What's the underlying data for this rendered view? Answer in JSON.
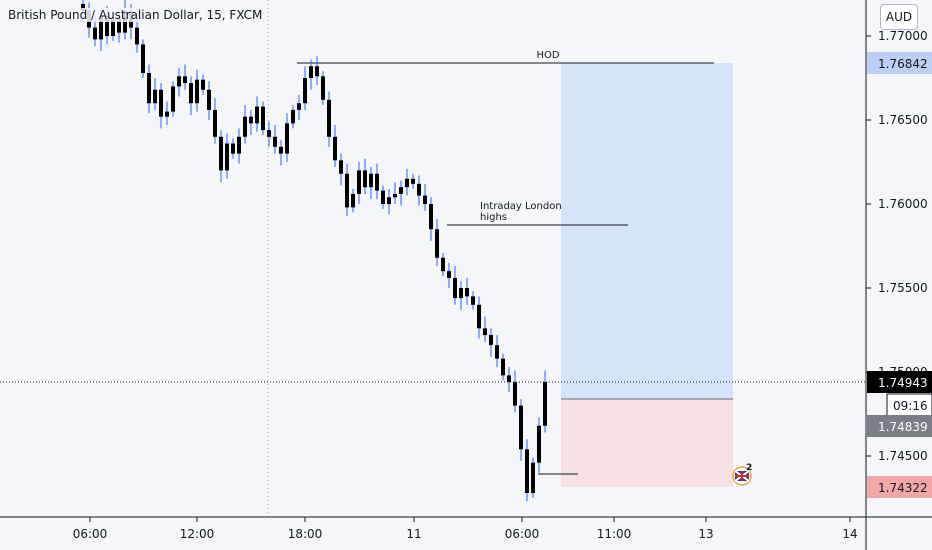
{
  "title": "British Pound / Australian Dollar, 15, FXCM",
  "currency": "AUD",
  "price_labels": [
    "1.77000",
    "1.76500",
    "1.76000",
    "1.75500",
    "1.75000",
    "1.74500"
  ],
  "badges": {
    "target": "1.76842",
    "current": "1.74943",
    "countdown": "09:16",
    "entry": "1.74839",
    "stop": "1.74322"
  },
  "time_labels": [
    "06:00",
    "12:00",
    "18:00",
    "11",
    "06:00",
    "11:00",
    "13",
    "14"
  ],
  "annotations": {
    "hod": "HOD",
    "london_line1": "Intraday London",
    "london_line2": "highs"
  },
  "colors": {
    "profit_zone": "#d3e3f9",
    "loss_zone": "#f6e0e2",
    "candle": "#000000",
    "wick": "#2962ff",
    "target_badge": "#bcd0f5",
    "stop_badge": "#f2a7a7",
    "current_badge": "#000000",
    "entry_badge": "#7b7e87"
  },
  "icon": "flag-icon",
  "notification_count": "2",
  "chart_data": {
    "type": "candlestick",
    "symbol": "GBPAUD",
    "interval": "15",
    "ylim": [
      1.7415,
      1.7725
    ],
    "closes": [
      1.7715,
      1.7705,
      1.7698,
      1.7712,
      1.77,
      1.771,
      1.7702,
      1.7715,
      1.7705,
      1.7695,
      1.7678,
      1.766,
      1.7668,
      1.7652,
      1.7655,
      1.767,
      1.7676,
      1.7672,
      1.766,
      1.7674,
      1.7668,
      1.7656,
      1.764,
      1.762,
      1.7636,
      1.763,
      1.764,
      1.7652,
      1.7648,
      1.7658,
      1.7644,
      1.764,
      1.7634,
      1.763,
      1.7648,
      1.7656,
      1.766,
      1.7675,
      1.7682,
      1.7676,
      1.7662,
      1.764,
      1.7626,
      1.7618,
      1.7598,
      1.7606,
      1.762,
      1.761,
      1.7618,
      1.7608,
      1.76,
      1.7604,
      1.7606,
      1.761,
      1.7615,
      1.7612,
      1.7605,
      1.76,
      1.7585,
      1.7568,
      1.756,
      1.7556,
      1.7544,
      1.755,
      1.7545,
      1.754,
      1.7526,
      1.7522,
      1.7516,
      1.7508,
      1.7498,
      1.7494,
      1.748,
      1.7454,
      1.7428,
      1.7446,
      1.7468,
      1.7494
    ],
    "intraday_london_high": 1.7587,
    "hod": 1.76842,
    "position": {
      "target": 1.76842,
      "entry": 1.74839,
      "stop": 1.74322,
      "current": 1.74943
    }
  }
}
